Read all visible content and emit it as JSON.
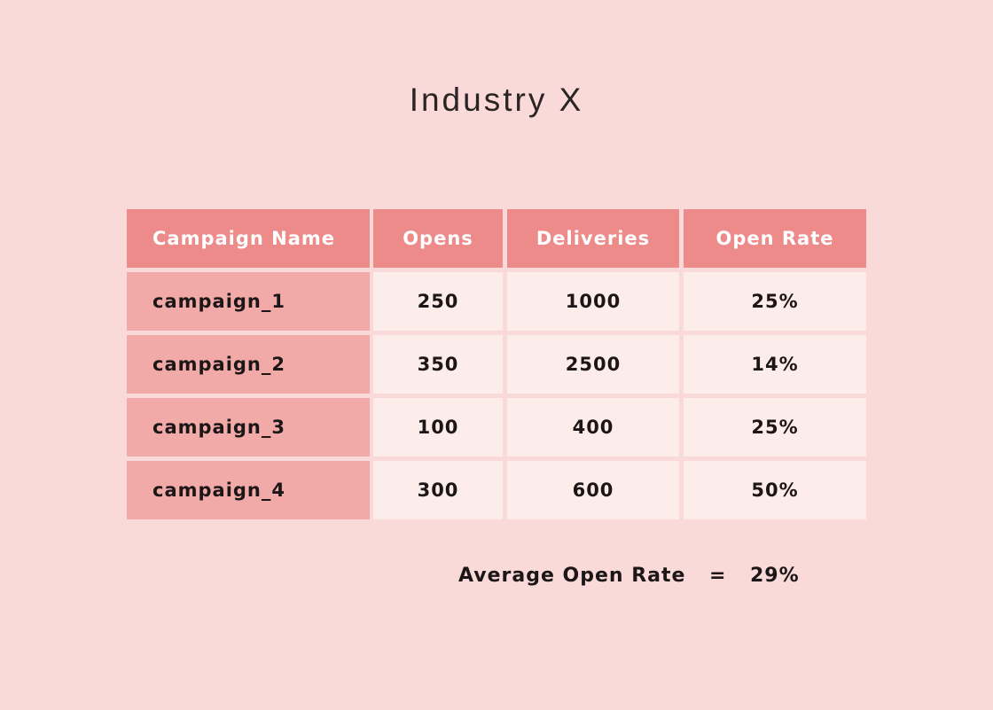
{
  "header": {
    "title": "Industry X"
  },
  "table": {
    "columns": [
      "Campaign Name",
      "Opens",
      "Deliveries",
      "Open Rate"
    ],
    "rows": [
      [
        "campaign_1",
        "250",
        "1000",
        "25%"
      ],
      [
        "campaign_2",
        "350",
        "2500",
        "14%"
      ],
      [
        "campaign_3",
        "100",
        "400",
        "25%"
      ],
      [
        "campaign_4",
        "300",
        "600",
        "50%"
      ]
    ]
  },
  "summary": {
    "label": "Average Open Rate",
    "operator": "=",
    "value": "29%"
  }
}
